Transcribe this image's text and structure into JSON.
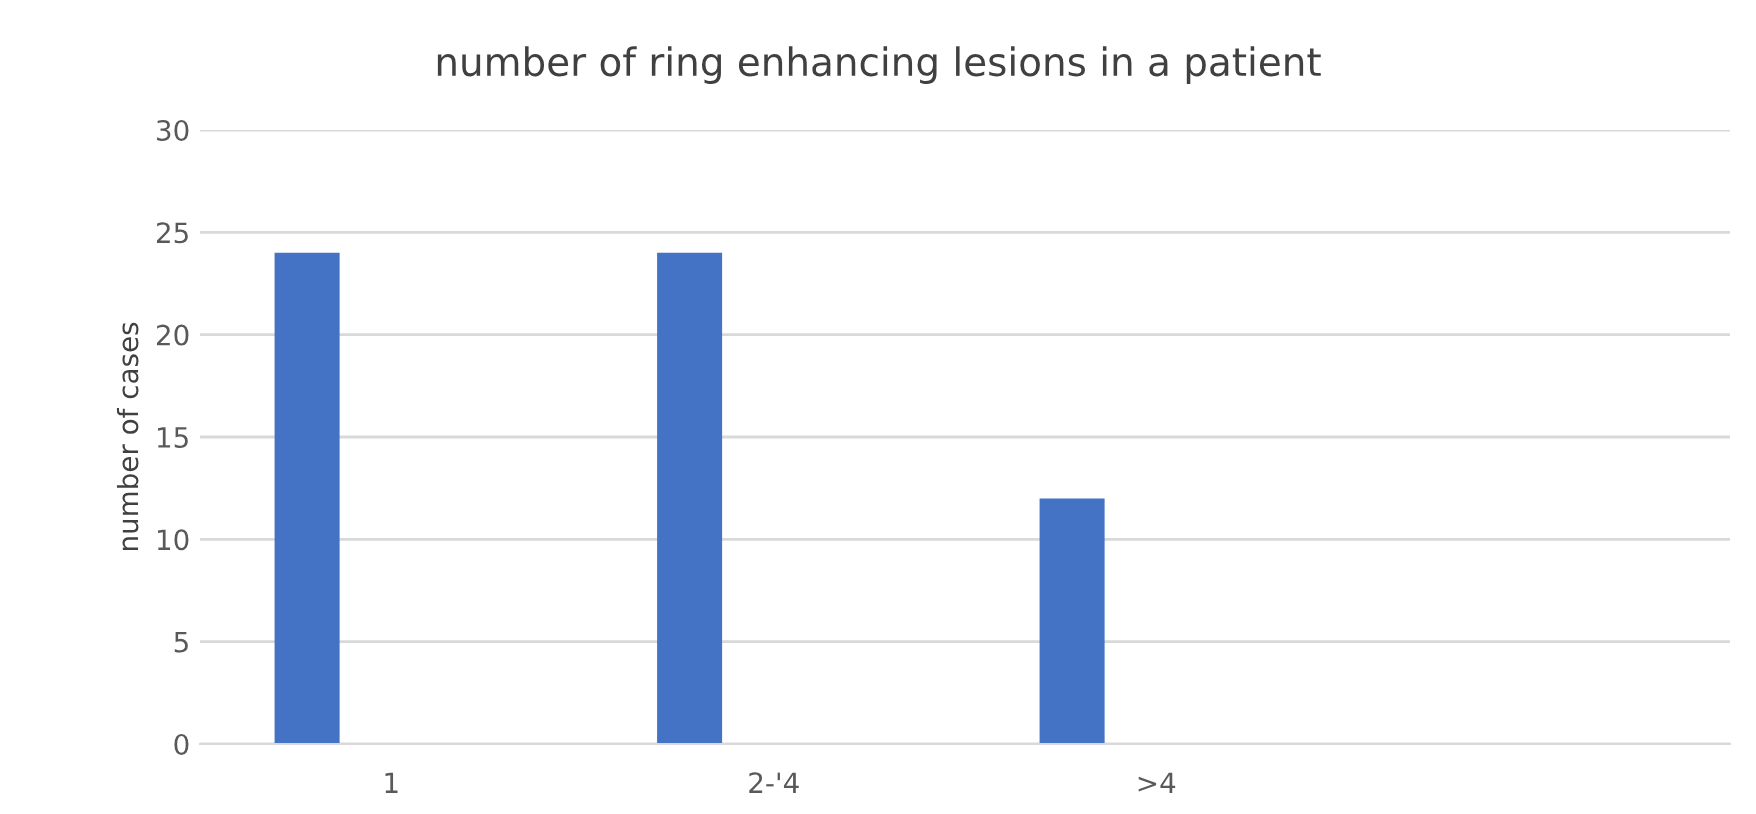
{
  "chart_data": {
    "type": "bar",
    "title": "number of ring enhancing lesions in a patient",
    "ylabel": "number of cases",
    "categories": [
      "1",
      "2-'4",
      ">4",
      null
    ],
    "values": [
      24,
      24,
      12,
      null
    ],
    "color": "#4472c4",
    "ylim": [
      0,
      30
    ],
    "yticks": [
      0,
      5,
      10,
      15,
      20,
      25,
      30
    ],
    "grid": "y"
  }
}
